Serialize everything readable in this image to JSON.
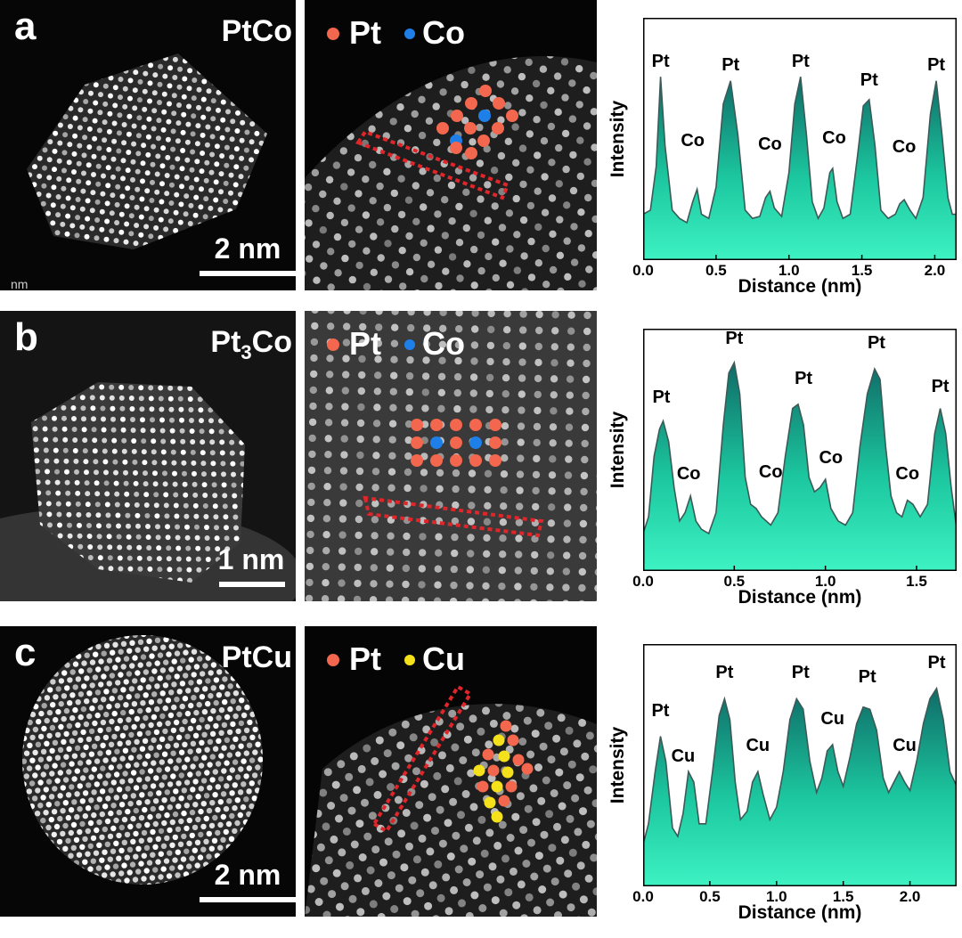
{
  "rows": [
    {
      "letter": "a",
      "material": "PtCo",
      "scale_bar": "2 nm",
      "stray_text": "nm",
      "legend": [
        {
          "label": "Pt",
          "color": "#f2674d"
        },
        {
          "label": "Co",
          "color": "#1e7fe8"
        }
      ]
    },
    {
      "letter": "b",
      "material_html": "Pt<sub>3</sub>Co",
      "scale_bar": "1 nm",
      "legend": [
        {
          "label": "Pt",
          "color": "#f2674d"
        },
        {
          "label": "Co",
          "color": "#1e7fe8"
        }
      ]
    },
    {
      "letter": "c",
      "material": "PtCu",
      "scale_bar": "2 nm",
      "legend": [
        {
          "label": "Pt",
          "color": "#f2674d"
        },
        {
          "label": "Cu",
          "color": "#f4e11c"
        }
      ]
    }
  ],
  "chart_data": [
    {
      "type": "area",
      "xlabel": "Distance (nm)",
      "ylabel": "Intensity",
      "xlim": [
        0,
        2.15
      ],
      "xticks": [
        "0.0",
        "0.5",
        "1.0",
        "1.5",
        "2.0"
      ],
      "xtick_values": [
        0,
        0.5,
        1.0,
        1.5,
        2.0
      ],
      "ylim": [
        0,
        1
      ],
      "x": [
        0,
        0.05,
        0.09,
        0.12,
        0.15,
        0.2,
        0.25,
        0.3,
        0.34,
        0.37,
        0.4,
        0.45,
        0.5,
        0.55,
        0.6,
        0.65,
        0.7,
        0.75,
        0.8,
        0.84,
        0.87,
        0.9,
        0.95,
        1.0,
        1.04,
        1.08,
        1.12,
        1.16,
        1.2,
        1.24,
        1.28,
        1.3,
        1.33,
        1.37,
        1.42,
        1.47,
        1.51,
        1.55,
        1.59,
        1.63,
        1.68,
        1.73,
        1.76,
        1.79,
        1.83,
        1.87,
        1.92,
        1.97,
        2.01,
        2.05,
        2.09,
        2.12,
        2.15
      ],
      "values": [
        0.22,
        0.24,
        0.45,
        0.88,
        0.55,
        0.24,
        0.2,
        0.18,
        0.28,
        0.34,
        0.22,
        0.2,
        0.35,
        0.75,
        0.86,
        0.6,
        0.24,
        0.2,
        0.21,
        0.3,
        0.33,
        0.25,
        0.21,
        0.42,
        0.75,
        0.88,
        0.6,
        0.28,
        0.2,
        0.25,
        0.42,
        0.44,
        0.28,
        0.2,
        0.22,
        0.5,
        0.74,
        0.77,
        0.55,
        0.24,
        0.2,
        0.22,
        0.27,
        0.29,
        0.24,
        0.2,
        0.3,
        0.7,
        0.86,
        0.6,
        0.3,
        0.22,
        0.22
      ],
      "annotations": [
        {
          "text": "Pt",
          "x": 0.12,
          "y": 0.95
        },
        {
          "text": "Co",
          "x": 0.34,
          "y": 0.57
        },
        {
          "text": "Pt",
          "x": 0.6,
          "y": 0.93
        },
        {
          "text": "Co",
          "x": 0.87,
          "y": 0.55
        },
        {
          "text": "Pt",
          "x": 1.08,
          "y": 0.95
        },
        {
          "text": "Co",
          "x": 1.31,
          "y": 0.58
        },
        {
          "text": "Pt",
          "x": 1.55,
          "y": 0.86
        },
        {
          "text": "Co",
          "x": 1.79,
          "y": 0.54
        },
        {
          "text": "Pt",
          "x": 2.01,
          "y": 0.93
        }
      ]
    },
    {
      "type": "area",
      "xlabel": "Distance (nm)",
      "ylabel": "Intensity",
      "xlim": [
        0,
        1.72
      ],
      "xticks": [
        "0.0",
        "0.5",
        "1.0",
        "1.5"
      ],
      "xtick_values": [
        0,
        0.5,
        1.0,
        1.5
      ],
      "ylim": [
        0,
        1
      ],
      "x": [
        0,
        0.03,
        0.06,
        0.09,
        0.11,
        0.14,
        0.17,
        0.2,
        0.23,
        0.26,
        0.29,
        0.32,
        0.36,
        0.4,
        0.44,
        0.47,
        0.5,
        0.53,
        0.56,
        0.59,
        0.62,
        0.65,
        0.7,
        0.74,
        0.78,
        0.82,
        0.85,
        0.88,
        0.91,
        0.94,
        0.97,
        1.0,
        1.03,
        1.07,
        1.11,
        1.15,
        1.19,
        1.23,
        1.27,
        1.3,
        1.33,
        1.36,
        1.39,
        1.42,
        1.45,
        1.48,
        1.52,
        1.56,
        1.6,
        1.63,
        1.66,
        1.69,
        1.72
      ],
      "values": [
        0.18,
        0.26,
        0.55,
        0.68,
        0.72,
        0.62,
        0.4,
        0.24,
        0.28,
        0.36,
        0.24,
        0.2,
        0.18,
        0.28,
        0.7,
        0.95,
        1.0,
        0.85,
        0.45,
        0.32,
        0.3,
        0.26,
        0.22,
        0.28,
        0.55,
        0.78,
        0.8,
        0.7,
        0.45,
        0.38,
        0.4,
        0.44,
        0.3,
        0.24,
        0.22,
        0.28,
        0.6,
        0.85,
        0.97,
        0.92,
        0.6,
        0.36,
        0.28,
        0.26,
        0.34,
        0.32,
        0.26,
        0.32,
        0.66,
        0.78,
        0.66,
        0.4,
        0.2
      ],
      "annotations": [
        {
          "text": "Pt",
          "x": 0.1,
          "y": 0.83
        },
        {
          "text": "Co",
          "x": 0.25,
          "y": 0.46
        },
        {
          "text": "Pt",
          "x": 0.5,
          "y": 1.11
        },
        {
          "text": "Co",
          "x": 0.7,
          "y": 0.47
        },
        {
          "text": "Pt",
          "x": 0.88,
          "y": 0.92
        },
        {
          "text": "Co",
          "x": 1.03,
          "y": 0.54
        },
        {
          "text": "Pt",
          "x": 1.28,
          "y": 1.09
        },
        {
          "text": "Co",
          "x": 1.45,
          "y": 0.46
        },
        {
          "text": "Pt",
          "x": 1.63,
          "y": 0.88
        }
      ]
    },
    {
      "type": "area",
      "xlabel": "Distance (nm)",
      "ylabel": "Intensity",
      "xlim": [
        0,
        2.35
      ],
      "xticks": [
        "0.0",
        "0.5",
        "1.0",
        "1.5",
        "2.0"
      ],
      "xtick_values": [
        0,
        0.5,
        1.0,
        1.5,
        2.0
      ],
      "ylim": [
        0,
        1
      ],
      "x": [
        0,
        0.04,
        0.09,
        0.13,
        0.17,
        0.22,
        0.26,
        0.3,
        0.34,
        0.38,
        0.42,
        0.47,
        0.52,
        0.57,
        0.61,
        0.65,
        0.69,
        0.73,
        0.78,
        0.82,
        0.86,
        0.9,
        0.95,
        1.0,
        1.05,
        1.1,
        1.15,
        1.2,
        1.25,
        1.3,
        1.34,
        1.38,
        1.42,
        1.46,
        1.5,
        1.55,
        1.6,
        1.65,
        1.7,
        1.75,
        1.8,
        1.84,
        1.88,
        1.92,
        1.96,
        2.0,
        2.05,
        2.1,
        2.15,
        2.2,
        2.25,
        2.3,
        2.35
      ],
      "values": [
        0.2,
        0.3,
        0.55,
        0.72,
        0.6,
        0.28,
        0.24,
        0.35,
        0.55,
        0.5,
        0.3,
        0.3,
        0.55,
        0.82,
        0.9,
        0.8,
        0.5,
        0.32,
        0.36,
        0.5,
        0.55,
        0.44,
        0.32,
        0.38,
        0.55,
        0.8,
        0.9,
        0.85,
        0.6,
        0.45,
        0.52,
        0.65,
        0.68,
        0.55,
        0.48,
        0.62,
        0.78,
        0.86,
        0.85,
        0.75,
        0.52,
        0.45,
        0.5,
        0.55,
        0.5,
        0.46,
        0.6,
        0.78,
        0.9,
        0.95,
        0.8,
        0.55,
        0.48
      ],
      "annotations": [
        {
          "text": "Pt",
          "x": 0.13,
          "y": 0.84
        },
        {
          "text": "Cu",
          "x": 0.3,
          "y": 0.62
        },
        {
          "text": "Pt",
          "x": 0.61,
          "y": 1.02
        },
        {
          "text": "Cu",
          "x": 0.86,
          "y": 0.67
        },
        {
          "text": "Pt",
          "x": 1.18,
          "y": 1.02
        },
        {
          "text": "Cu",
          "x": 1.42,
          "y": 0.8
        },
        {
          "text": "Pt",
          "x": 1.68,
          "y": 1.0
        },
        {
          "text": "Cu",
          "x": 1.96,
          "y": 0.67
        },
        {
          "text": "Pt",
          "x": 2.2,
          "y": 1.07
        }
      ]
    }
  ]
}
